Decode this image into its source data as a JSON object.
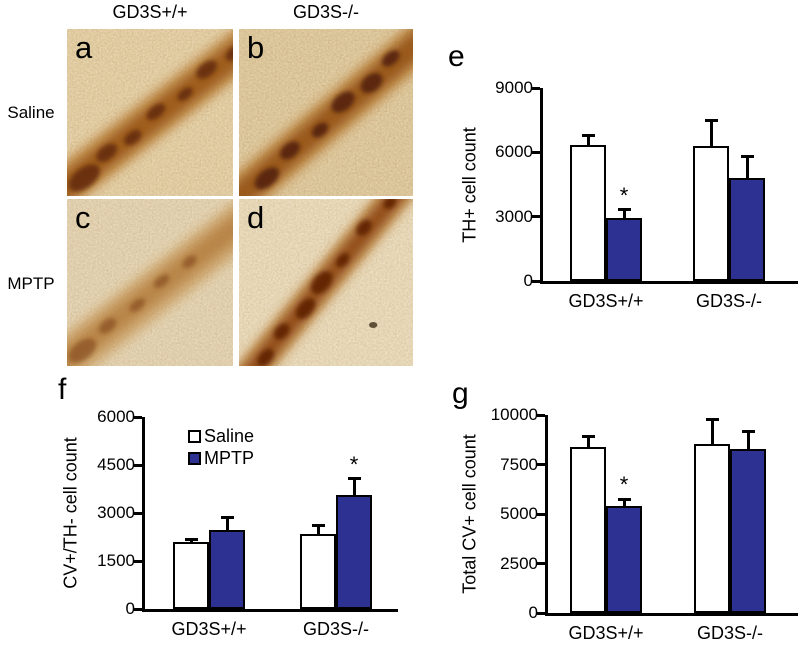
{
  "figure": {
    "sig_marker": "*",
    "micrographs": {
      "col_headers": [
        "GD3S+/+",
        "GD3S-/-"
      ],
      "row_labels": [
        "Saline",
        "MPTP"
      ],
      "panel_letters": [
        "a",
        "b",
        "c",
        "d"
      ],
      "description": "TH immunohistochemistry of substantia nigra, brown DAB staining"
    }
  },
  "colors": {
    "saline_bar": "#ffffff",
    "mptp_bar": "#2d3192",
    "bar_border": "#000000",
    "axis": "#000000"
  },
  "chart_data": [
    {
      "id": "e",
      "panel_label": "e",
      "type": "bar",
      "ylabel": "TH+ cell count",
      "ylim": [
        0,
        9000
      ],
      "yticks": [
        0,
        3000,
        6000,
        9000
      ],
      "categories": [
        "GD3S+/+",
        "GD3S-/-"
      ],
      "series": [
        {
          "name": "Saline",
          "color": "#ffffff",
          "values": [
            6350,
            6300
          ],
          "errors": [
            450,
            1200
          ],
          "significant": [
            false,
            false
          ]
        },
        {
          "name": "MPTP",
          "color": "#2d3192",
          "values": [
            2950,
            4800
          ],
          "errors": [
            380,
            1000
          ],
          "significant": [
            true,
            false
          ]
        }
      ],
      "legend": false,
      "grid": false
    },
    {
      "id": "f",
      "panel_label": "f",
      "type": "bar",
      "ylabel": "CV+/TH- cell count",
      "ylim": [
        0,
        6000
      ],
      "yticks": [
        0,
        1500,
        3000,
        4500,
        6000
      ],
      "categories": [
        "GD3S+/+",
        "GD3S-/-"
      ],
      "series": [
        {
          "name": "Saline",
          "color": "#ffffff",
          "values": [
            2100,
            2330
          ],
          "errors": [
            80,
            290
          ],
          "significant": [
            false,
            false
          ]
        },
        {
          "name": "MPTP",
          "color": "#2d3192",
          "values": [
            2480,
            3550
          ],
          "errors": [
            370,
            520
          ],
          "significant": [
            false,
            true
          ]
        }
      ],
      "legend": true,
      "legend_position": "upper-left",
      "grid": false
    },
    {
      "id": "g",
      "panel_label": "g",
      "type": "bar",
      "ylabel": "Total CV+ cell count",
      "ylim": [
        0,
        10000
      ],
      "yticks": [
        0,
        2500,
        5000,
        7500,
        10000
      ],
      "categories": [
        "GD3S+/+",
        "GD3S-/-"
      ],
      "series": [
        {
          "name": "Saline",
          "color": "#ffffff",
          "values": [
            8400,
            8550
          ],
          "errors": [
            500,
            1200
          ],
          "significant": [
            false,
            false
          ]
        },
        {
          "name": "MPTP",
          "color": "#2d3192",
          "values": [
            5400,
            8300
          ],
          "errors": [
            350,
            850
          ],
          "significant": [
            true,
            false
          ]
        }
      ],
      "legend": false,
      "grid": false
    }
  ]
}
